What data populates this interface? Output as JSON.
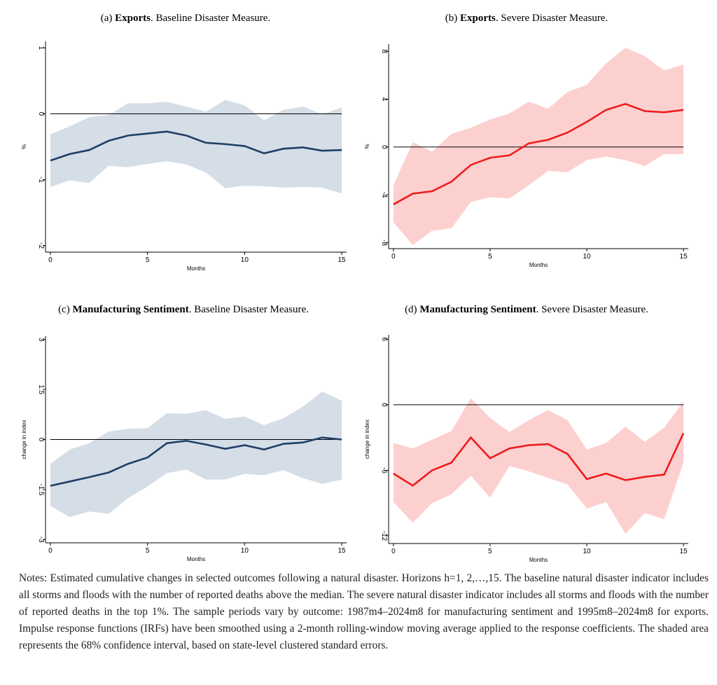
{
  "chart_data": [
    {
      "type": "line",
      "title_label": "(a)",
      "title_bold": "Exports",
      "title_rest": ". Baseline Disaster Measure.",
      "x_label": "Months",
      "y_label": "%",
      "x": [
        0,
        1,
        2,
        3,
        4,
        5,
        6,
        7,
        8,
        9,
        10,
        11,
        12,
        13,
        14,
        15
      ],
      "values": [
        -0.71,
        -0.61,
        -0.55,
        -0.41,
        -0.33,
        -0.3,
        -0.27,
        -0.33,
        -0.44,
        -0.46,
        -0.49,
        -0.6,
        -0.53,
        -0.51,
        -0.56,
        -0.55
      ],
      "ci_upper": [
        -0.31,
        -0.19,
        -0.05,
        -0.02,
        0.16,
        0.16,
        0.18,
        0.11,
        0.03,
        0.21,
        0.13,
        -0.1,
        0.06,
        0.11,
        -0.01,
        0.1
      ],
      "ci_lower": [
        -1.11,
        -1.01,
        -1.05,
        -0.79,
        -0.81,
        -0.76,
        -0.72,
        -0.77,
        -0.89,
        -1.13,
        -1.09,
        -1.1,
        -1.12,
        -1.11,
        -1.12,
        -1.21
      ],
      "color": "#1f3f66",
      "band_color": "#d5dde6",
      "reference_line": 0,
      "xlim": [
        -0.25,
        15.25
      ],
      "xticks": [
        0,
        5,
        10,
        15
      ],
      "ylim": [
        -2.1,
        1.1
      ],
      "yticks": [
        -2,
        -1,
        0,
        1
      ]
    },
    {
      "type": "line",
      "title_label": "(b)",
      "title_bold": "Exports",
      "title_rest": ". Severe Disaster Measure.",
      "x_label": "Months",
      "y_label": "%",
      "x": [
        0,
        1,
        2,
        3,
        4,
        5,
        6,
        7,
        8,
        9,
        10,
        11,
        12,
        13,
        14,
        15
      ],
      "values": [
        -4.8,
        -3.9,
        -3.7,
        -2.9,
        -1.5,
        -0.9,
        -0.7,
        0.3,
        0.6,
        1.2,
        2.1,
        3.1,
        3.6,
        3.0,
        2.9,
        3.1
      ],
      "ci_upper": [
        -3.2,
        0.4,
        -0.4,
        1.1,
        1.6,
        2.3,
        2.8,
        3.8,
        3.2,
        4.6,
        5.2,
        7.0,
        8.3,
        7.6,
        6.4,
        6.9
      ],
      "ci_lower": [
        -6.3,
        -8.2,
        -7.0,
        -6.8,
        -4.6,
        -4.2,
        -4.3,
        -3.2,
        -2.0,
        -2.1,
        -1.1,
        -0.8,
        -1.1,
        -1.6,
        -0.6,
        -0.6
      ],
      "color": "#ee1c1c",
      "band_color": "#fdd0d0",
      "reference_line": 0,
      "xlim": [
        -0.25,
        15.25
      ],
      "xticks": [
        0,
        5,
        10,
        15
      ],
      "ylim": [
        -8.5,
        8.6
      ],
      "yticks": [
        -8,
        -4,
        0,
        4,
        8
      ]
    },
    {
      "type": "line",
      "title_label": "(c)",
      "title_bold": "Manufacturing Sentiment",
      "title_rest": ". Baseline Disaster Measure.",
      "x_label": "Months",
      "y_label": "change in index",
      "x": [
        0,
        1,
        2,
        3,
        4,
        5,
        6,
        7,
        8,
        9,
        10,
        11,
        12,
        13,
        14,
        15
      ],
      "values": [
        -1.39,
        -1.26,
        -1.13,
        -0.99,
        -0.73,
        -0.54,
        -0.11,
        -0.04,
        -0.15,
        -0.28,
        -0.17,
        -0.3,
        -0.13,
        -0.09,
        0.06,
        0
      ],
      "ci_upper": [
        -0.73,
        -0.3,
        -0.11,
        0.24,
        0.32,
        0.34,
        0.79,
        0.77,
        0.88,
        0.62,
        0.69,
        0.43,
        0.64,
        0.99,
        1.44,
        1.16
      ],
      "ci_lower": [
        -1.99,
        -2.33,
        -2.16,
        -2.23,
        -1.76,
        -1.41,
        -1.01,
        -0.9,
        -1.2,
        -1.2,
        -1.03,
        -1.07,
        -0.92,
        -1.16,
        -1.33,
        -1.2
      ],
      "color": "#1f3f66",
      "band_color": "#d5dde6",
      "reference_line": 0,
      "xlim": [
        -0.25,
        15.25
      ],
      "xticks": [
        0,
        5,
        10,
        15
      ],
      "ylim": [
        -3.1,
        3.1
      ],
      "yticks": [
        -3,
        -1.5,
        0,
        1.5,
        3
      ]
    },
    {
      "type": "line",
      "title_label": "(d)",
      "title_bold": "Manufacturing Sentiment",
      "title_rest": ". Severe Disaster Measure.",
      "x_label": "Months",
      "y_label": "change in index",
      "x": [
        0,
        1,
        2,
        3,
        4,
        5,
        6,
        7,
        8,
        9,
        10,
        11,
        12,
        13,
        14,
        15
      ],
      "values": [
        -6.3,
        -7.4,
        -6.0,
        -5.3,
        -3.0,
        -4.9,
        -4.0,
        -3.7,
        -3.6,
        -4.5,
        -6.8,
        -6.3,
        -6.9,
        -6.6,
        -6.4,
        -2.6
      ],
      "ci_upper": [
        -3.5,
        -4.0,
        -3.2,
        -2.4,
        0.6,
        -1.2,
        -2.5,
        -1.4,
        -0.5,
        -1.4,
        -4.1,
        -3.5,
        -2.0,
        -3.4,
        -2.1,
        0.3
      ],
      "ci_lower": [
        -8.9,
        -10.8,
        -9.0,
        -8.2,
        -6.5,
        -8.5,
        -5.6,
        -6.1,
        -6.7,
        -7.3,
        -9.5,
        -8.9,
        -11.8,
        -9.9,
        -10.5,
        -5.3
      ],
      "color": "#ee1c1c",
      "band_color": "#fdd0d0",
      "reference_line": 0,
      "xlim": [
        -0.25,
        15.25
      ],
      "xticks": [
        0,
        5,
        10,
        15
      ],
      "ylim": [
        -12.7,
        6.4
      ],
      "yticks": [
        -12,
        -6,
        0,
        6
      ]
    }
  ],
  "notes": "Notes: Estimated cumulative changes in selected outcomes following a natural disaster. Horizons h=1, 2,…,15. The baseline natural disaster indicator includes all storms and floods with the number of reported deaths above the median. The severe natural disaster indicator includes all storms and floods with the number of reported deaths in the top 1%. The sample periods vary by outcome: 1987m4–2024m8 for manufacturing sentiment and 1995m8–2024m8 for exports. Impulse response functions (IRFs) have been smoothed using a 2-month rolling-window moving average applied to the response coefficients. The shaded area represents the 68% confidence interval, based on state-level clustered standard errors."
}
